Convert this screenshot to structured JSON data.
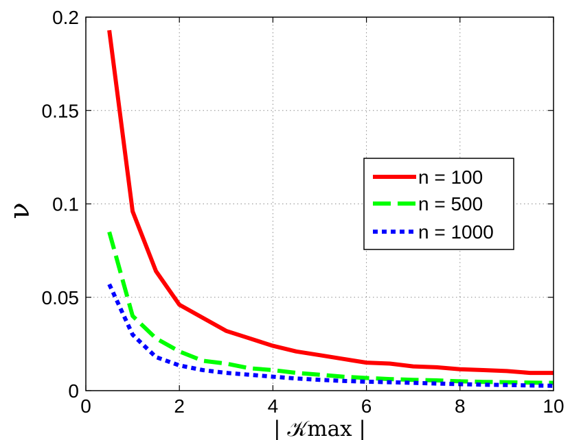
{
  "chart_data": {
    "type": "line",
    "title": "",
    "xlabel": "| 𝒦max |",
    "ylabel": "ν",
    "xlim": [
      0,
      10
    ],
    "ylim": [
      0,
      0.2
    ],
    "x_ticks": [
      0,
      2,
      4,
      6,
      8,
      10
    ],
    "y_ticks": [
      0,
      0.05,
      0.1,
      0.15,
      0.2
    ],
    "x_tick_labels": [
      "0",
      "2",
      "4",
      "6",
      "8",
      "10"
    ],
    "y_tick_labels": [
      "0",
      "0.05",
      "0.1",
      "0.15",
      "0.2"
    ],
    "grid": true,
    "legend_position": "center-right",
    "x": [
      0.5,
      1,
      1.5,
      2,
      2.5,
      3,
      3.5,
      4,
      4.5,
      5,
      5.5,
      6,
      6.5,
      7,
      7.5,
      8,
      8.5,
      9,
      9.5,
      10
    ],
    "series": [
      {
        "name": "n = 100",
        "color": "#ff0000",
        "line_style": "solid",
        "values": [
          0.193,
          0.096,
          0.064,
          0.046,
          0.039,
          0.032,
          0.028,
          0.024,
          0.021,
          0.019,
          0.017,
          0.015,
          0.0145,
          0.013,
          0.0125,
          0.0115,
          0.011,
          0.0105,
          0.0095,
          0.0095
        ]
      },
      {
        "name": "n = 500",
        "color": "#00ff00",
        "line_style": "dashed",
        "values": [
          0.085,
          0.04,
          0.028,
          0.021,
          0.016,
          0.0145,
          0.012,
          0.011,
          0.0095,
          0.0085,
          0.0075,
          0.0068,
          0.0062,
          0.0058,
          0.0055,
          0.005,
          0.0047,
          0.0045,
          0.0043,
          0.0042
        ]
      },
      {
        "name": "n = 1000",
        "color": "#0000ff",
        "line_style": "dotted",
        "values": [
          0.057,
          0.03,
          0.018,
          0.0135,
          0.011,
          0.0095,
          0.0085,
          0.0075,
          0.0065,
          0.0058,
          0.0052,
          0.0048,
          0.0045,
          0.0042,
          0.0038,
          0.0035,
          0.0032,
          0.003,
          0.0028,
          0.0026
        ]
      }
    ]
  }
}
